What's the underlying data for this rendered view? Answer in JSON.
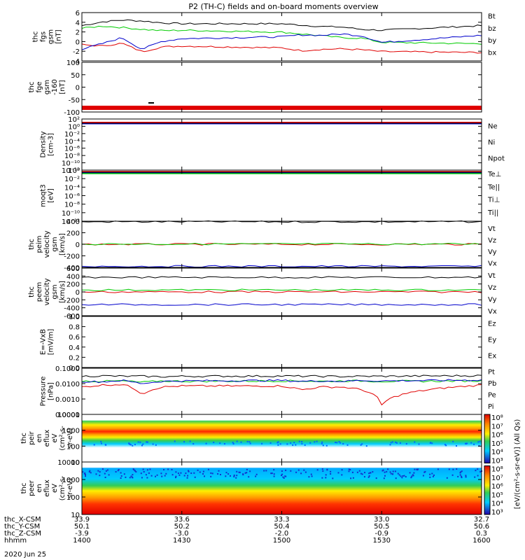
{
  "title": "P2 (TH-C) fields and on-board moments overview",
  "date_label": "2020 Jun 25",
  "colors": {
    "black": "#000000",
    "red": "#e00000",
    "green": "#00cc00",
    "blue": "#0000cc",
    "cyan": "#00ccff"
  },
  "colorbar": {
    "ticks": [
      "10⁸",
      "10⁷",
      "10⁶",
      "10⁵",
      "10⁴",
      "10³"
    ],
    "unit_label": "[eV/(cm²-s-sr-eV)] (All Qs)"
  },
  "ephemeris": {
    "rows": [
      {
        "label": "thc_X-CSM",
        "values": [
          "33.9",
          "33.6",
          "33.3",
          "33.0",
          "32.7"
        ]
      },
      {
        "label": "thc_Y-CSM",
        "values": [
          "50.1",
          "50.2",
          "50.4",
          "50.5",
          "50.6"
        ]
      },
      {
        "label": "thc_Z-CSM",
        "values": [
          "-3.9",
          "-3.0",
          "-2.0",
          "-0.9",
          "0.3"
        ]
      },
      {
        "label": "hhmm",
        "values": [
          "1400",
          "1430",
          "1500",
          "1530",
          "1600"
        ]
      }
    ]
  },
  "chart_data": [
    {
      "type": "line",
      "id": "fgs",
      "ylabel_lines": [
        "thc",
        "fgs",
        "gsm",
        "[nT]"
      ],
      "ticks": [
        "6",
        "4",
        "2",
        "0",
        "-2",
        "-4"
      ],
      "ylim": [
        -4,
        6.4
      ],
      "x": [
        1400,
        1410,
        1420,
        1430,
        1440,
        1450,
        1500,
        1510,
        1520,
        1530,
        1540,
        1550,
        1600
      ],
      "series": [
        {
          "name": "Bt",
          "color": "#000000",
          "values": [
            3.6,
            4.4,
            4.8,
            4.6,
            4.2,
            4.0,
            4.0,
            3.7,
            3.4,
            3.3,
            2.8,
            2.6,
            3.6
          ]
        },
        {
          "name": "bz",
          "color": "#e00000",
          "values": [
            -0.5,
            -0.8,
            -0.2,
            -2.0,
            -1.0,
            -0.8,
            -1.2,
            -1.8,
            -1.5,
            -1.4,
            -1.6,
            -2.0,
            -2.2
          ]
        },
        {
          "name": "by",
          "color": "#00cc00",
          "values": [
            3.0,
            3.5,
            3.2,
            2.8,
            2.5,
            2.6,
            2.2,
            1.8,
            1.4,
            1.0,
            0.9,
            0.0,
            -0.3
          ]
        },
        {
          "name": "bx",
          "color": "#0000cc",
          "values": [
            -1.5,
            -0.3,
            1.0,
            -1.5,
            0.2,
            0.8,
            1.2,
            1.6,
            1.5,
            1.8,
            1.4,
            0.0,
            1.5
          ]
        }
      ]
    },
    {
      "type": "line",
      "id": "fge",
      "ylabel_lines": [
        "thc",
        "fge",
        "gsm",
        "-160",
        "[nT]"
      ],
      "ticks": [
        "100",
        "50",
        "0",
        "-50",
        "-100"
      ],
      "ylim": [
        -150,
        110
      ],
      "series": []
    },
    {
      "type": "line",
      "id": "density",
      "ylabel_lines": [
        "Density",
        "[cm-3]"
      ],
      "ticks": [
        "10²",
        "10⁰",
        "10⁻²",
        "10⁻⁴",
        "10⁻⁶",
        "10⁻⁸",
        "10⁻¹⁰",
        "10⁻¹²"
      ],
      "series": [
        {
          "name": "Ne",
          "color": "#e00000"
        },
        {
          "name": "Ni",
          "color": "#000000"
        },
        {
          "name": "Npot",
          "color": "#0000cc"
        }
      ]
    },
    {
      "type": "line",
      "id": "temp",
      "ylabel_lines": [
        "moqt3",
        "[eV]"
      ],
      "ticks": [
        "10⁰",
        "10⁻²",
        "10⁻⁴",
        "10⁻⁶",
        "10⁻⁸",
        "10⁻¹⁰",
        "10⁻¹²"
      ],
      "series": [
        {
          "name": "Te⊥",
          "color": "#e00000"
        },
        {
          "name": "Te||",
          "color": "#000000"
        },
        {
          "name": "Ti⊥",
          "color": "#0000cc"
        },
        {
          "name": "Ti||",
          "color": "#00cc00"
        }
      ]
    },
    {
      "type": "line",
      "id": "peim",
      "ylabel_lines": [
        "thc",
        "peim",
        "velocity",
        "gsm",
        "[km/s]"
      ],
      "ticks": [
        "400",
        "200",
        "0",
        "-200",
        "-400"
      ],
      "ylim": [
        -420,
        420
      ],
      "series": [
        {
          "name": "Vt",
          "color": "#000000",
          "level": 410
        },
        {
          "name": "Vz",
          "color": "#e00000",
          "level": 0
        },
        {
          "name": "Vy",
          "color": "#00cc00",
          "level": 5
        },
        {
          "name": "Vx",
          "color": "#0000cc",
          "level": -400
        }
      ]
    },
    {
      "type": "line",
      "id": "peem",
      "ylabel_lines": [
        "thc",
        "peem",
        "velocity",
        "gsm",
        "[km/s]"
      ],
      "ticks": [
        "600",
        "400",
        "200",
        "0",
        "-200",
        "-400",
        "-600"
      ],
      "ylim": [
        -620,
        620
      ],
      "series": [
        {
          "name": "Vt",
          "color": "#000000",
          "level": 380
        },
        {
          "name": "Vz",
          "color": "#e00000",
          "level": 0
        },
        {
          "name": "Vy",
          "color": "#00cc00",
          "level": 50
        },
        {
          "name": "Vx",
          "color": "#0000cc",
          "level": -330
        }
      ]
    },
    {
      "type": "line",
      "id": "efield",
      "ylabel_lines": [
        "E=-VxB",
        "[mV/m]"
      ],
      "ticks": [
        "1.0",
        "0.8",
        "0.6",
        "0.4",
        "0.2",
        "0.0"
      ],
      "ylim": [
        0,
        1
      ],
      "series": [
        {
          "name": "Ez",
          "color": "#e00000"
        },
        {
          "name": "Ey",
          "color": "#00cc00"
        },
        {
          "name": "Ex",
          "color": "#0000cc"
        }
      ]
    },
    {
      "type": "line",
      "id": "pressure",
      "ylabel_lines": [
        "Pressure",
        "[nPa]"
      ],
      "ticks": [
        "0.1000",
        "0.0100",
        "0.0010",
        "0.0001"
      ],
      "log": true,
      "ylim": [
        0.0001,
        0.1
      ],
      "x": [
        1400,
        1410,
        1420,
        1430,
        1440,
        1450,
        1500,
        1510,
        1520,
        1530,
        1540,
        1550,
        1600
      ],
      "series": [
        {
          "name": "Pt",
          "color": "#000000",
          "values": [
            0.03,
            0.032,
            0.03,
            0.03,
            0.028,
            0.03,
            0.031,
            0.03,
            0.03,
            0.029,
            0.03,
            0.03,
            0.033
          ]
        },
        {
          "name": "Pb",
          "color": "#e00000",
          "values": [
            0.006,
            0.008,
            0.009,
            0.002,
            0.006,
            0.007,
            0.007,
            0.004,
            0.006,
            0.006,
            0.004,
            0.0004,
            0.008
          ]
        },
        {
          "name": "Pe",
          "color": "#00cc00",
          "values": [
            0.015,
            0.014,
            0.015,
            0.012,
            0.015,
            0.014,
            0.015,
            0.015,
            0.014,
            0.015,
            0.015,
            0.014,
            0.015
          ]
        },
        {
          "name": "Pi",
          "color": "#0000cc",
          "values": [
            0.014,
            0.013,
            0.016,
            0.01,
            0.014,
            0.015,
            0.016,
            0.014,
            0.015,
            0.014,
            0.016,
            0.015,
            0.017
          ]
        }
      ]
    },
    {
      "type": "heatmap",
      "id": "peir",
      "ylabel_lines": [
        "thc",
        "peir",
        "en",
        "eflux",
        "eV",
        "(cm²-s-",
        "sr-eV)"
      ],
      "ticks": [
        "10000",
        "1000",
        "100",
        "10"
      ]
    },
    {
      "type": "heatmap",
      "id": "peer",
      "ylabel_lines": [
        "thc",
        "peer",
        "en",
        "eflux",
        "eV",
        "(cm²-s-",
        "sr-eV)"
      ],
      "ticks": [
        "10000",
        "1000",
        "100",
        "10"
      ]
    }
  ]
}
